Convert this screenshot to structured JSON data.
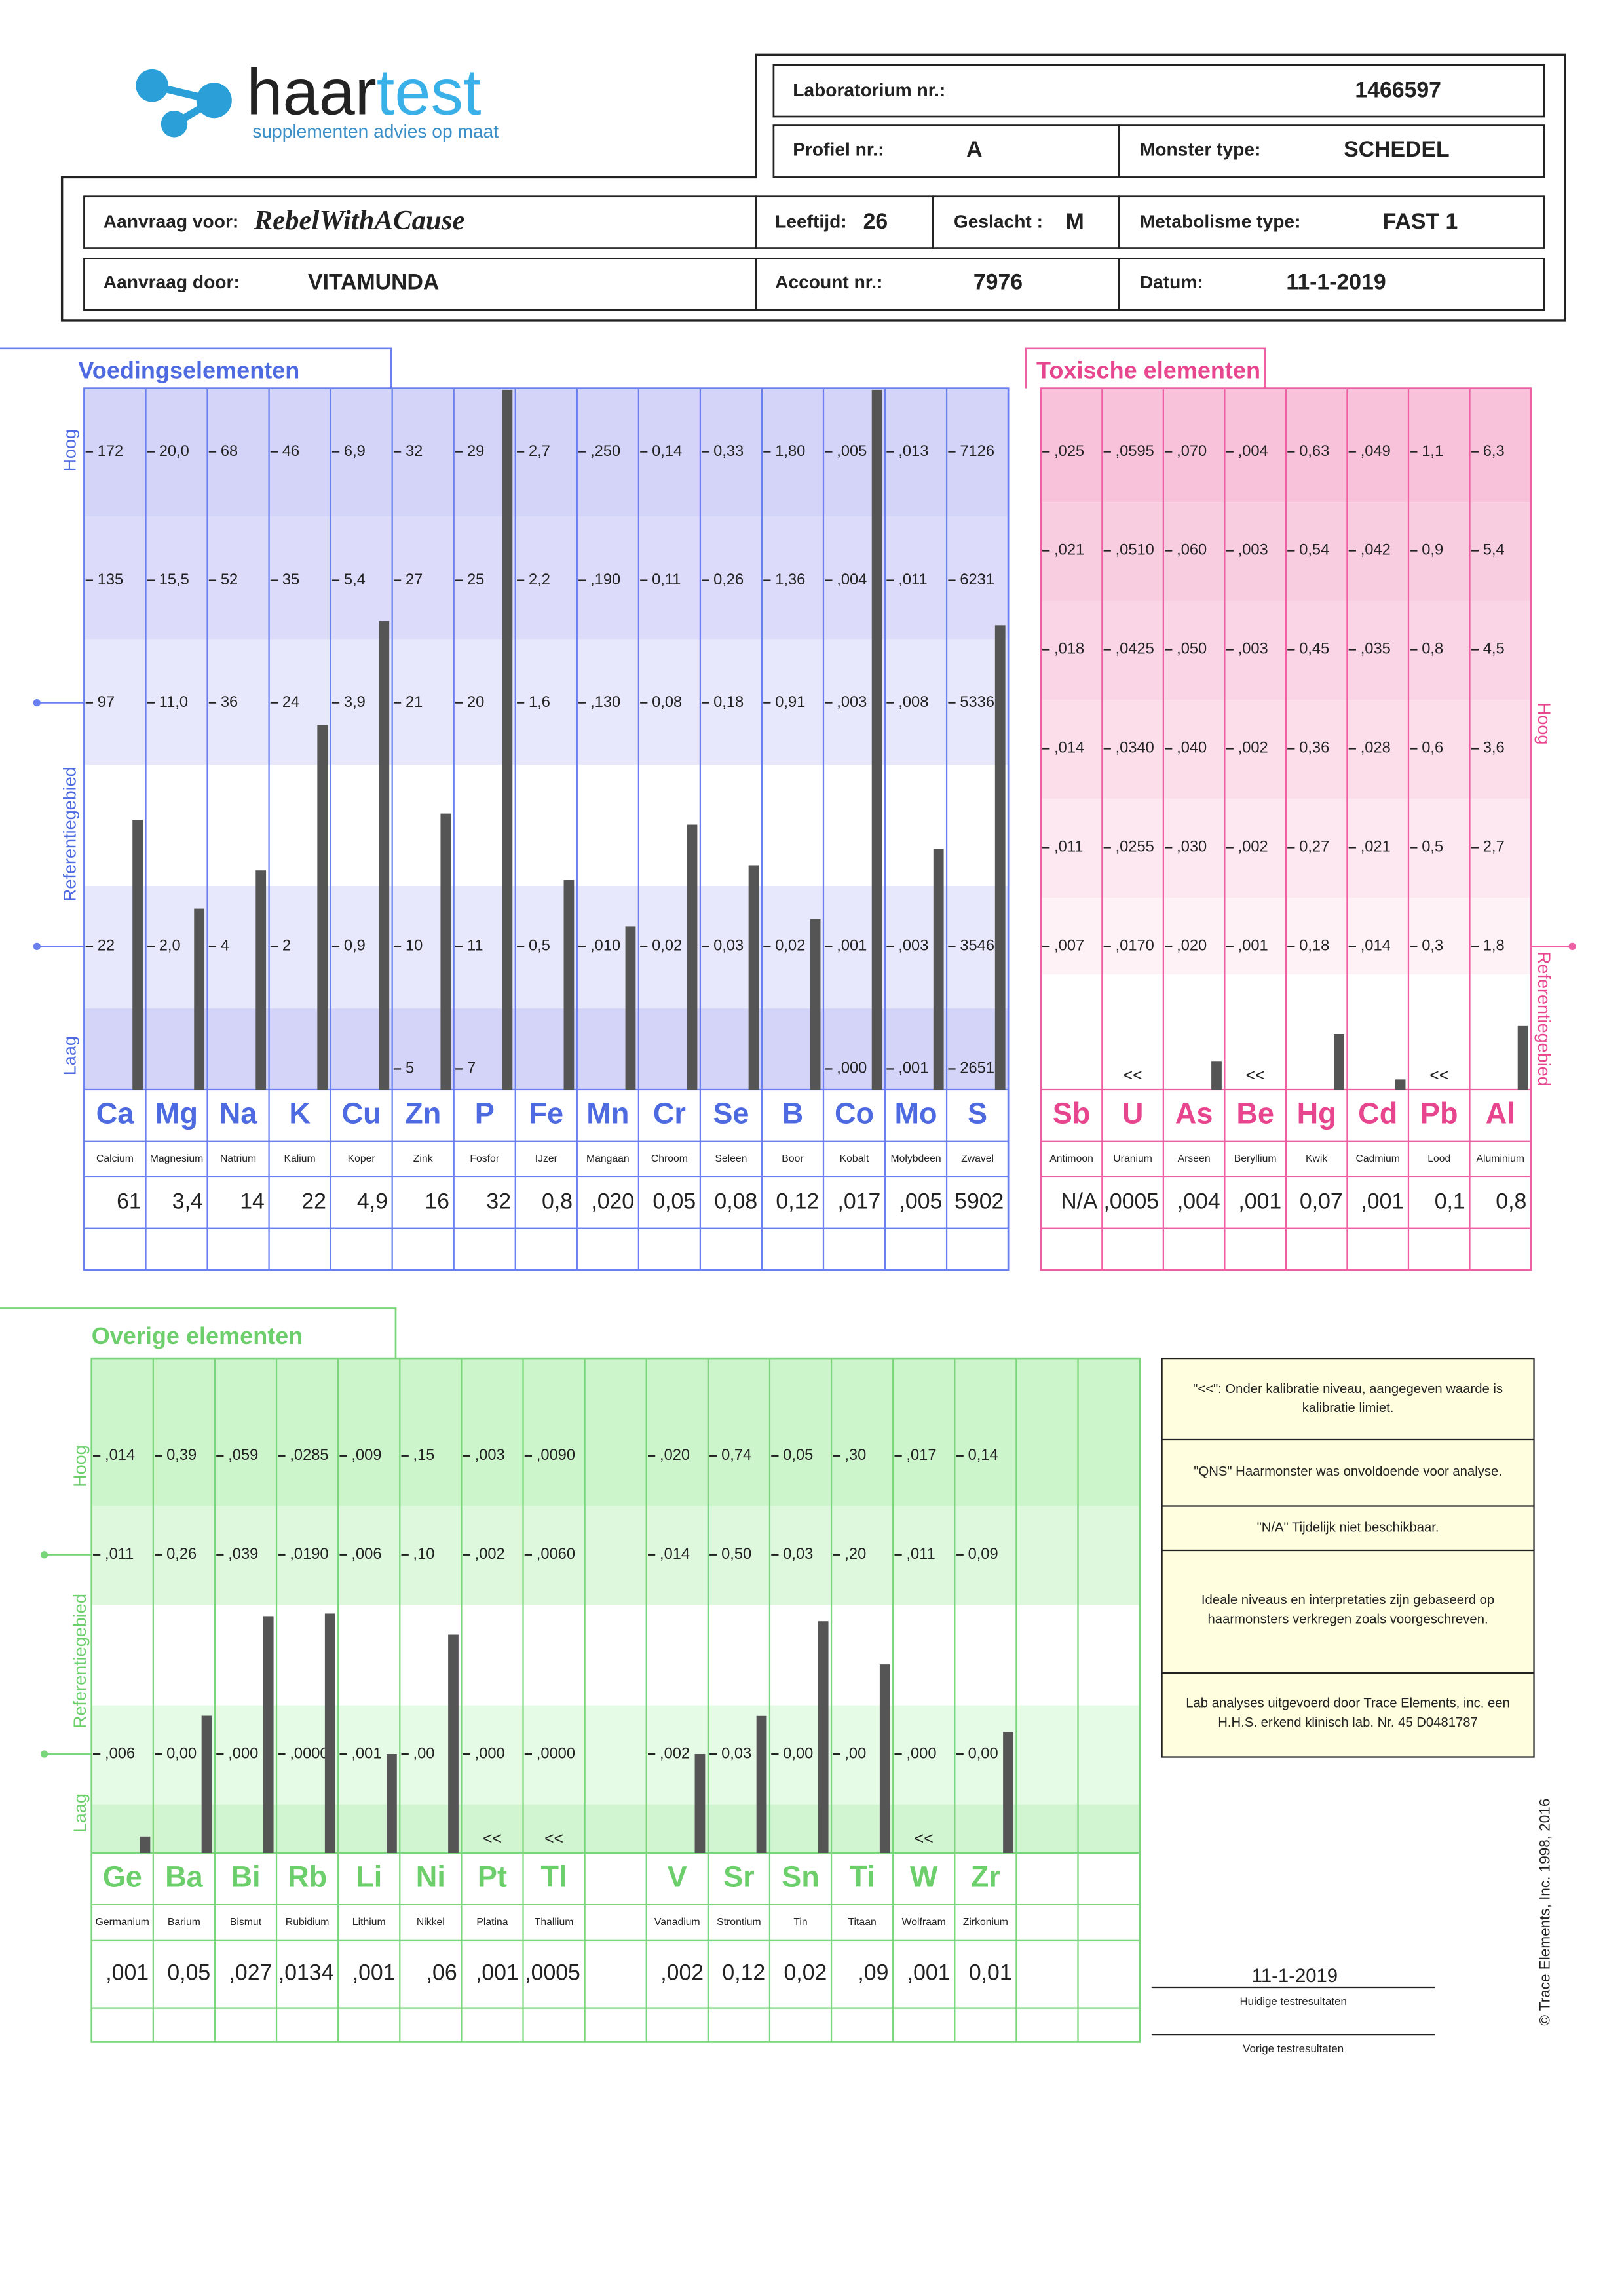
{
  "logo": {
    "name_1": "haar",
    "name_2": "test",
    "tagline": "supplementen advies op maat"
  },
  "header": {
    "fields": [
      {
        "label": "Laboratorium nr.:",
        "value": "1466597"
      },
      {
        "label": "Profiel nr.:",
        "value": "A"
      },
      {
        "label": "Monster type:",
        "value": "SCHEDEL"
      },
      {
        "label": "Aanvraag voor:",
        "value": "RebelWithACause"
      },
      {
        "label": "Leeftijd:",
        "value": "26"
      },
      {
        "label": "Geslacht :",
        "value": "M"
      },
      {
        "label": "Metabolisme type:",
        "value": "FAST 1"
      },
      {
        "label": "Aanvraag door:",
        "value": "VITAMUNDA"
      },
      {
        "label": "Account nr.:",
        "value": "7976"
      },
      {
        "label": "Datum:",
        "value": "11-1-2019"
      }
    ]
  },
  "sections": [
    {
      "title": "Voedingselementen",
      "axis": {
        "high": "Hoog",
        "reference": "Referentiegebied",
        "low": "Laag"
      },
      "columns": [
        {
          "symbol": "Ca",
          "name": "Calcium",
          "ticks": [
            "172",
            "135",
            "97",
            "22",
            null
          ],
          "result": "61"
        },
        {
          "symbol": "Mg",
          "name": "Magnesium",
          "ticks": [
            "20,0",
            "15,5",
            "11,0",
            "2,0",
            null
          ],
          "result": "3,4"
        },
        {
          "symbol": "Na",
          "name": "Natrium",
          "ticks": [
            "68",
            "52",
            "36",
            "4",
            null
          ],
          "result": "14"
        },
        {
          "symbol": "K",
          "name": "Kalium",
          "ticks": [
            "46",
            "35",
            "24",
            "2",
            null
          ],
          "result": "22"
        },
        {
          "symbol": "Cu",
          "name": "Koper",
          "ticks": [
            "6,9",
            "5,4",
            "3,9",
            "0,9",
            null
          ],
          "result": "4,9"
        },
        {
          "symbol": "Zn",
          "name": "Zink",
          "ticks": [
            "32",
            "27",
            "21",
            "10",
            "5"
          ],
          "result": "16"
        },
        {
          "symbol": "P",
          "name": "Fosfor",
          "ticks": [
            "29",
            "25",
            "20",
            "11",
            "7"
          ],
          "result": "32"
        },
        {
          "symbol": "Fe",
          "name": "IJzer",
          "ticks": [
            "2,7",
            "2,2",
            "1,6",
            "0,5",
            null
          ],
          "result": "0,8"
        },
        {
          "symbol": "Mn",
          "name": "Mangaan",
          "ticks": [
            ",250",
            ",190",
            ",130",
            ",010",
            null
          ],
          "result": ",020"
        },
        {
          "symbol": "Cr",
          "name": "Chroom",
          "ticks": [
            "0,14",
            "0,11",
            "0,08",
            "0,02",
            null
          ],
          "result": "0,05"
        },
        {
          "symbol": "Se",
          "name": "Seleen",
          "ticks": [
            "0,33",
            "0,26",
            "0,18",
            "0,03",
            null
          ],
          "result": "0,08"
        },
        {
          "symbol": "B",
          "name": "Boor",
          "ticks": [
            "1,80",
            "1,36",
            "0,91",
            "0,02",
            null
          ],
          "result": "0,12"
        },
        {
          "symbol": "Co",
          "name": "Kobalt",
          "ticks": [
            ",005",
            ",004",
            ",003",
            ",001",
            ",000"
          ],
          "result": ",017"
        },
        {
          "symbol": "Mo",
          "name": "Molybdeen",
          "ticks": [
            ",013",
            ",011",
            ",008",
            ",003",
            ",001"
          ],
          "result": ",005"
        },
        {
          "symbol": "S",
          "name": "Zwavel",
          "ticks": [
            "7126",
            "6231",
            "5336",
            "3546",
            "2651"
          ],
          "result": "5902"
        }
      ]
    },
    {
      "title": "Toxische elementen",
      "axis": {
        "high": "Hoog",
        "reference": "Referentiegebied"
      },
      "columns": [
        {
          "symbol": "Sb",
          "name": "Antimoon",
          "ticks": [
            ",025",
            ",021",
            ",018",
            ",014",
            ",011",
            ",007"
          ],
          "result": "N/A"
        },
        {
          "symbol": "U",
          "name": "Uranium",
          "ticks": [
            ",0595",
            ",0510",
            ",0425",
            ",0340",
            ",0255",
            ",0170"
          ],
          "result": ",0005",
          "flag": "<<"
        },
        {
          "symbol": "As",
          "name": "Arseen",
          "ticks": [
            ",070",
            ",060",
            ",050",
            ",040",
            ",030",
            ",020"
          ],
          "result": ",004"
        },
        {
          "symbol": "Be",
          "name": "Beryllium",
          "ticks": [
            ",004",
            ",003",
            ",003",
            ",002",
            ",002",
            ",001"
          ],
          "result": ",001",
          "flag": "<<"
        },
        {
          "symbol": "Hg",
          "name": "Kwik",
          "ticks": [
            "0,63",
            "0,54",
            "0,45",
            "0,36",
            "0,27",
            "0,18"
          ],
          "result": "0,07"
        },
        {
          "symbol": "Cd",
          "name": "Cadmium",
          "ticks": [
            ",049",
            ",042",
            ",035",
            ",028",
            ",021",
            ",014"
          ],
          "result": ",001"
        },
        {
          "symbol": "Pb",
          "name": "Lood",
          "ticks": [
            "1,1",
            "0,9",
            "0,8",
            "0,6",
            "0,5",
            "0,3"
          ],
          "result": "0,1",
          "flag": "<<"
        },
        {
          "symbol": "Al",
          "name": "Aluminium",
          "ticks": [
            "6,3",
            "5,4",
            "4,5",
            "3,6",
            "2,7",
            "1,8"
          ],
          "result": "0,8"
        }
      ]
    },
    {
      "title": "Overige elementen",
      "axis": {
        "high": "Hoog",
        "reference": "Referentiegebied",
        "low": "Laag"
      },
      "columns": [
        {
          "symbol": "Ge",
          "name": "Germanium",
          "ticks": [
            ",014",
            ",011",
            ",006"
          ],
          "result": ",001"
        },
        {
          "symbol": "Ba",
          "name": "Barium",
          "ticks": [
            "0,39",
            "0,26",
            "0,00"
          ],
          "result": "0,05"
        },
        {
          "symbol": "Bi",
          "name": "Bismut",
          "ticks": [
            ",059",
            ",039",
            ",000"
          ],
          "result": ",027"
        },
        {
          "symbol": "Rb",
          "name": "Rubidium",
          "ticks": [
            ",0285",
            ",0190",
            ",0000"
          ],
          "result": ",0134"
        },
        {
          "symbol": "Li",
          "name": "Lithium",
          "ticks": [
            ",009",
            ",006",
            ",001"
          ],
          "result": ",001"
        },
        {
          "symbol": "Ni",
          "name": "Nikkel",
          "ticks": [
            ",15",
            ",10",
            ",00"
          ],
          "result": ",06"
        },
        {
          "symbol": "Pt",
          "name": "Platina",
          "ticks": [
            ",003",
            ",002",
            ",000"
          ],
          "result": ",001",
          "flag": "<<"
        },
        {
          "symbol": "Tl",
          "name": "Thallium",
          "ticks": [
            ",0090",
            ",0060",
            ",0000"
          ],
          "result": ",0005",
          "flag": "<<"
        },
        {
          "symbol": "V",
          "name": "Vanadium",
          "ticks": [
            ",020",
            ",014",
            ",002"
          ],
          "result": ",002"
        },
        {
          "symbol": "Sr",
          "name": "Strontium",
          "ticks": [
            "0,74",
            "0,50",
            "0,03"
          ],
          "result": "0,12"
        },
        {
          "symbol": "Sn",
          "name": "Tin",
          "ticks": [
            "0,05",
            "0,03",
            "0,00"
          ],
          "result": "0,02"
        },
        {
          "symbol": "Ti",
          "name": "Titaan",
          "ticks": [
            ",30",
            ",20",
            ",00"
          ],
          "result": ",09"
        },
        {
          "symbol": "W",
          "name": "Wolfraam",
          "ticks": [
            ",017",
            ",011",
            ",000"
          ],
          "result": ",001",
          "flag": "<<"
        },
        {
          "symbol": "Zr",
          "name": "Zirkonium",
          "ticks": [
            "0,14",
            "0,09",
            "0,00"
          ],
          "result": "0,01"
        }
      ]
    }
  ],
  "notes": [
    [
      "\"<<\": Onder kalibratie niveau, aangegeven waarde is",
      "kalibratie limiet."
    ],
    [
      "\"QNS\" Haarmonster was onvoldoende voor analyse."
    ],
    [
      "\"N/A\" Tijdelijk niet beschikbaar."
    ],
    [
      "Ideale niveaus en interpretaties zijn gebaseerd op",
      "haarmonsters verkregen zoals voorgeschreven."
    ],
    [
      "Lab analyses uitgevoerd door Trace Elements, inc. een",
      "H.H.S. erkend klinisch lab. Nr. 45 D0481787"
    ]
  ],
  "results_footer": {
    "current_date": "11-1-2019",
    "current_label": "Huidige testresultaten",
    "previous_label": "Vorige testresultaten"
  },
  "copyright": "© Trace Elements, Inc. 1998, 2016"
}
